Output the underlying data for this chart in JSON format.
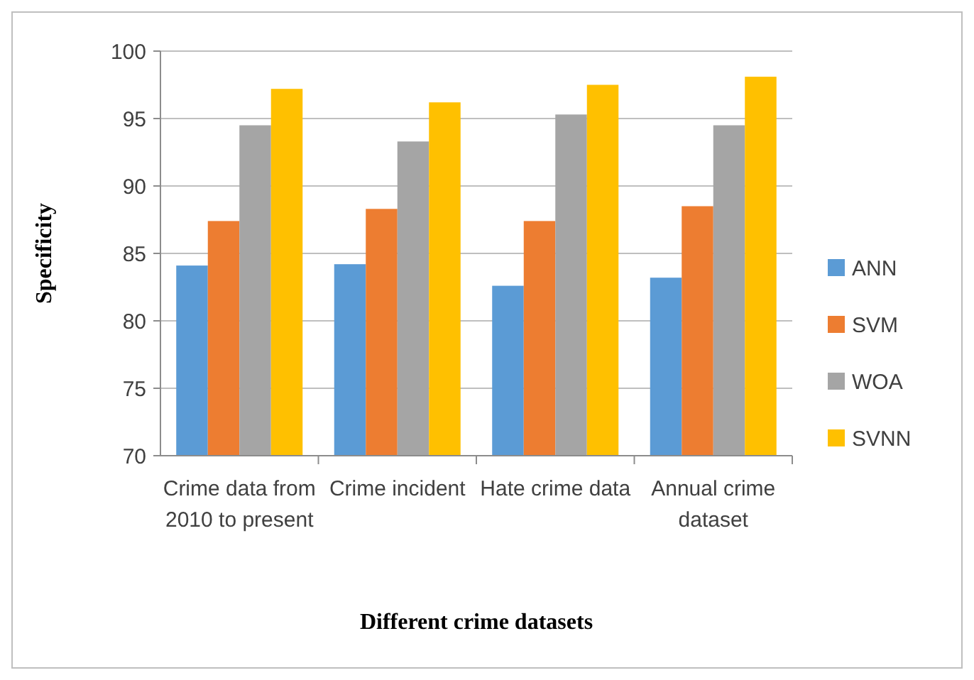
{
  "chart_data": {
    "type": "bar",
    "xlabel": "Different crime datasets",
    "ylabel": "Specificity",
    "categories": [
      "Crime data from 2010 to present",
      "Crime incident",
      "Hate crime data",
      "Annual crime dataset"
    ],
    "series": [
      {
        "name": "ANN",
        "color": "#5b9bd5",
        "values": [
          84.1,
          84.2,
          82.6,
          83.2
        ]
      },
      {
        "name": "SVM",
        "color": "#ed7d31",
        "values": [
          87.4,
          88.3,
          87.4,
          88.5
        ]
      },
      {
        "name": "WOA",
        "color": "#a5a5a5",
        "values": [
          94.5,
          93.3,
          95.3,
          94.5
        ]
      },
      {
        "name": "SVNN",
        "color": "#ffc000",
        "values": [
          97.2,
          96.2,
          97.5,
          98.1
        ]
      }
    ],
    "ylim": [
      70,
      100
    ],
    "yticks": [
      70,
      75,
      80,
      85,
      90,
      95,
      100
    ],
    "grid": "y",
    "legend": "right"
  }
}
